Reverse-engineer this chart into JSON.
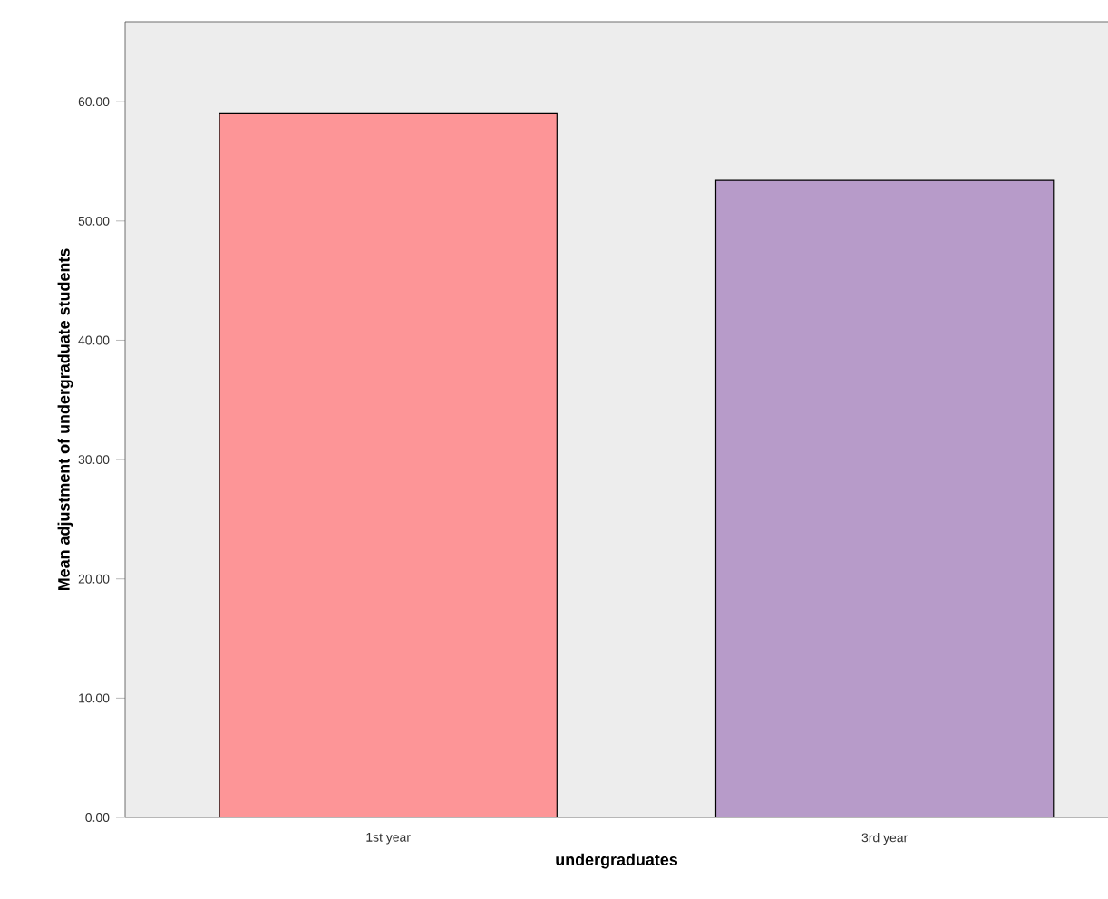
{
  "chart_data": {
    "type": "bar",
    "xlabel": "undergraduates",
    "ylabel": "Mean adjustment of undergraduate students",
    "categories": [
      "1st year",
      "3rd year"
    ],
    "values": [
      59.0,
      53.4
    ],
    "colors": [
      "#fd9597",
      "#b79bc9"
    ],
    "ylim": [
      0,
      66.7
    ],
    "yticks": [
      {
        "value": 0,
        "label": "0.00"
      },
      {
        "value": 10,
        "label": "10.00"
      },
      {
        "value": 20,
        "label": "20.00"
      },
      {
        "value": 30,
        "label": "30.00"
      },
      {
        "value": 40,
        "label": "40.00"
      },
      {
        "value": 50,
        "label": "50.00"
      },
      {
        "value": 60,
        "label": "60.00"
      }
    ],
    "grid": false
  }
}
